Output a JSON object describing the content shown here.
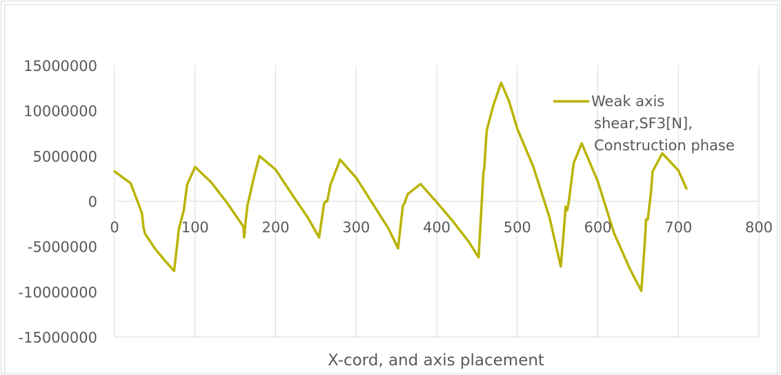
{
  "chart_data": {
    "type": "line",
    "title": "",
    "xlabel": "X-cord, and axis placement",
    "ylabel": "",
    "xlim": [
      0,
      800
    ],
    "ylim": [
      -15000000,
      15000000
    ],
    "x_ticks": [
      0,
      100,
      200,
      300,
      400,
      500,
      600,
      700,
      800
    ],
    "y_ticks": [
      15000000,
      10000000,
      5000000,
      0,
      -5000000,
      -10000000,
      -15000000
    ],
    "x_tick_labels": [
      "0",
      "100",
      "200",
      "300",
      "400",
      "500",
      "600",
      "700",
      "800"
    ],
    "y_tick_labels": [
      "15000000",
      "10000000",
      "5000000",
      "0",
      "-5000000",
      "-10000000",
      "-15000000"
    ],
    "grid": "vertical",
    "legend_position": "top-right",
    "legend_lines": [
      "Weak axis",
      "shear,SF3[N],",
      "Construction phase"
    ],
    "series": [
      {
        "name": "Weak axis shear,SF3[N], Construction phase",
        "color": "#b9b300",
        "points": [
          [
            0,
            3300000
          ],
          [
            20,
            2000000
          ],
          [
            34,
            -1300000
          ],
          [
            36,
            -2900000
          ],
          [
            38,
            -3600000
          ],
          [
            50,
            -5200000
          ],
          [
            62,
            -6500000
          ],
          [
            74,
            -7700000
          ],
          [
            80,
            -3000000
          ],
          [
            86,
            -1000000
          ],
          [
            90,
            1800000
          ],
          [
            100,
            3800000
          ],
          [
            120,
            2100000
          ],
          [
            140,
            -200000
          ],
          [
            160,
            -2800000
          ],
          [
            161,
            -4000000
          ],
          [
            163,
            -2000000
          ],
          [
            165,
            -500000
          ],
          [
            174,
            3000000
          ],
          [
            180,
            5000000
          ],
          [
            200,
            3500000
          ],
          [
            220,
            800000
          ],
          [
            240,
            -1800000
          ],
          [
            254,
            -4000000
          ],
          [
            260,
            -300000
          ],
          [
            262,
            0
          ],
          [
            264,
            0
          ],
          [
            268,
            1800000
          ],
          [
            280,
            4600000
          ],
          [
            300,
            2600000
          ],
          [
            320,
            -200000
          ],
          [
            340,
            -3000000
          ],
          [
            352,
            -5200000
          ],
          [
            356,
            -2000000
          ],
          [
            358,
            -500000
          ],
          [
            360,
            -200000
          ],
          [
            364,
            800000
          ],
          [
            380,
            1900000
          ],
          [
            400,
            -100000
          ],
          [
            420,
            -2200000
          ],
          [
            440,
            -4500000
          ],
          [
            452,
            -6200000
          ],
          [
            458,
            3200000
          ],
          [
            459,
            3600000
          ],
          [
            462,
            7800000
          ],
          [
            470,
            10500000
          ],
          [
            480,
            13100000
          ],
          [
            490,
            11000000
          ],
          [
            500,
            8000000
          ],
          [
            520,
            3800000
          ],
          [
            540,
            -1800000
          ],
          [
            554,
            -7200000
          ],
          [
            558,
            -3000000
          ],
          [
            560,
            -600000
          ],
          [
            562,
            -1000000
          ],
          [
            564,
            0
          ],
          [
            570,
            4200000
          ],
          [
            580,
            6400000
          ],
          [
            600,
            2200000
          ],
          [
            620,
            -3500000
          ],
          [
            640,
            -7500000
          ],
          [
            654,
            -9900000
          ],
          [
            658,
            -5000000
          ],
          [
            660,
            -2000000
          ],
          [
            662,
            -2000000
          ],
          [
            666,
            1000000
          ],
          [
            668,
            3300000
          ],
          [
            680,
            5300000
          ],
          [
            700,
            3400000
          ],
          [
            710,
            1400000
          ]
        ]
      }
    ]
  }
}
